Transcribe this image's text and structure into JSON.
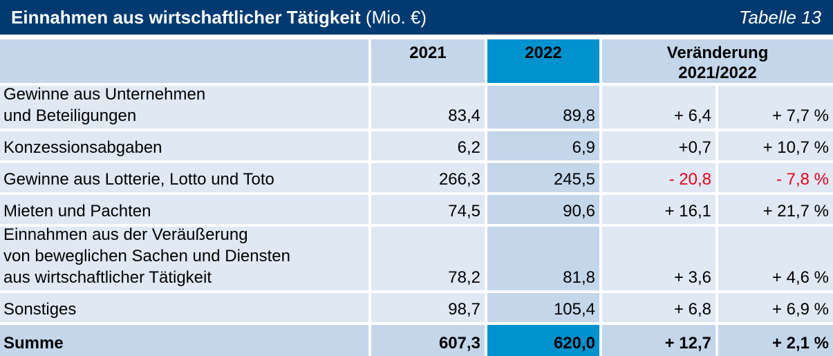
{
  "header": {
    "title_bold": "Einnahmen aus wirtschaftlicher Tätigkeit",
    "title_unit": " (Mio. €)",
    "table_ref": "Tabelle 13"
  },
  "columns": {
    "y2021": "2021",
    "y2022": "2022",
    "change_line1": "Veränderung",
    "change_line2": "2021/2022"
  },
  "rows": [
    {
      "label": "Gewinne aus Unternehmen\nund Beteiligungen",
      "v2021": "83,4",
      "v2022": "89,8",
      "abs": "+ 6,4",
      "pct": "+ 7,7 %",
      "negative": false
    },
    {
      "label": "Konzessionsabgaben",
      "v2021": "6,2",
      "v2022": "6,9",
      "abs": "+0,7",
      "pct": "+ 10,7 %",
      "negative": false
    },
    {
      "label": "Gewinne aus Lotterie, Lotto und Toto",
      "v2021": "266,3",
      "v2022": "245,5",
      "abs": "- 20,8",
      "pct": "- 7,8 %",
      "negative": true
    },
    {
      "label": "Mieten und Pachten",
      "v2021": "74,5",
      "v2022": "90,6",
      "abs": "+ 16,1",
      "pct": "+ 21,7 %",
      "negative": false
    },
    {
      "label": "Einnahmen aus der Veräußerung\nvon beweglichen Sachen und Diensten\naus wirtschaftlicher Tätigkeit",
      "v2021": "78,2",
      "v2022": "81,8",
      "abs": "+ 3,6",
      "pct": "+ 4,6 %",
      "negative": false
    },
    {
      "label": "Sonstiges",
      "v2021": "98,7",
      "v2022": "105,4",
      "abs": "+ 6,8",
      "pct": "+ 6,9 %",
      "negative": false
    }
  ],
  "total": {
    "label": "Summe",
    "v2021": "607,3",
    "v2022": "620,0",
    "abs": "+ 12,7",
    "pct": "+ 2,1 %"
  },
  "colors": {
    "title_bg": "#003a70",
    "header_bg": "#c4d6ea",
    "row_bg": "#dfe8f3",
    "highlight_2022": "#0092cf",
    "negative": "#e3001b"
  }
}
